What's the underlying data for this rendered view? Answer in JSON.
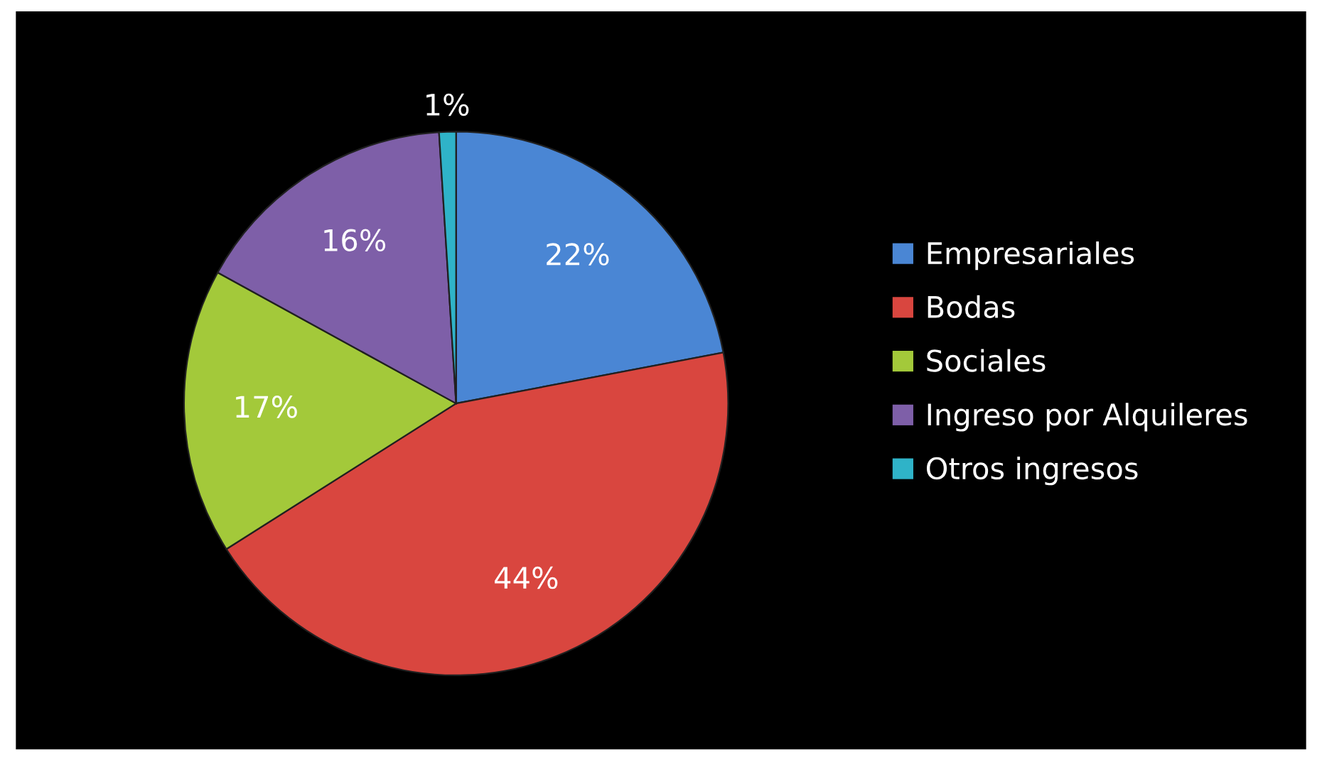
{
  "chart_data": {
    "type": "pie",
    "categories": [
      "Empresariales",
      "Bodas",
      "Sociales",
      "Ingreso por Alquileres",
      "Otros ingresos"
    ],
    "values": [
      22,
      44,
      17,
      16,
      1
    ],
    "value_labels": [
      "22%",
      "44%",
      "17%",
      "16%",
      "1%"
    ],
    "colors": [
      "#4a86d4",
      "#d9463f",
      "#a3c93a",
      "#7e5fa8",
      "#2fb3c8"
    ],
    "legend": "right"
  }
}
